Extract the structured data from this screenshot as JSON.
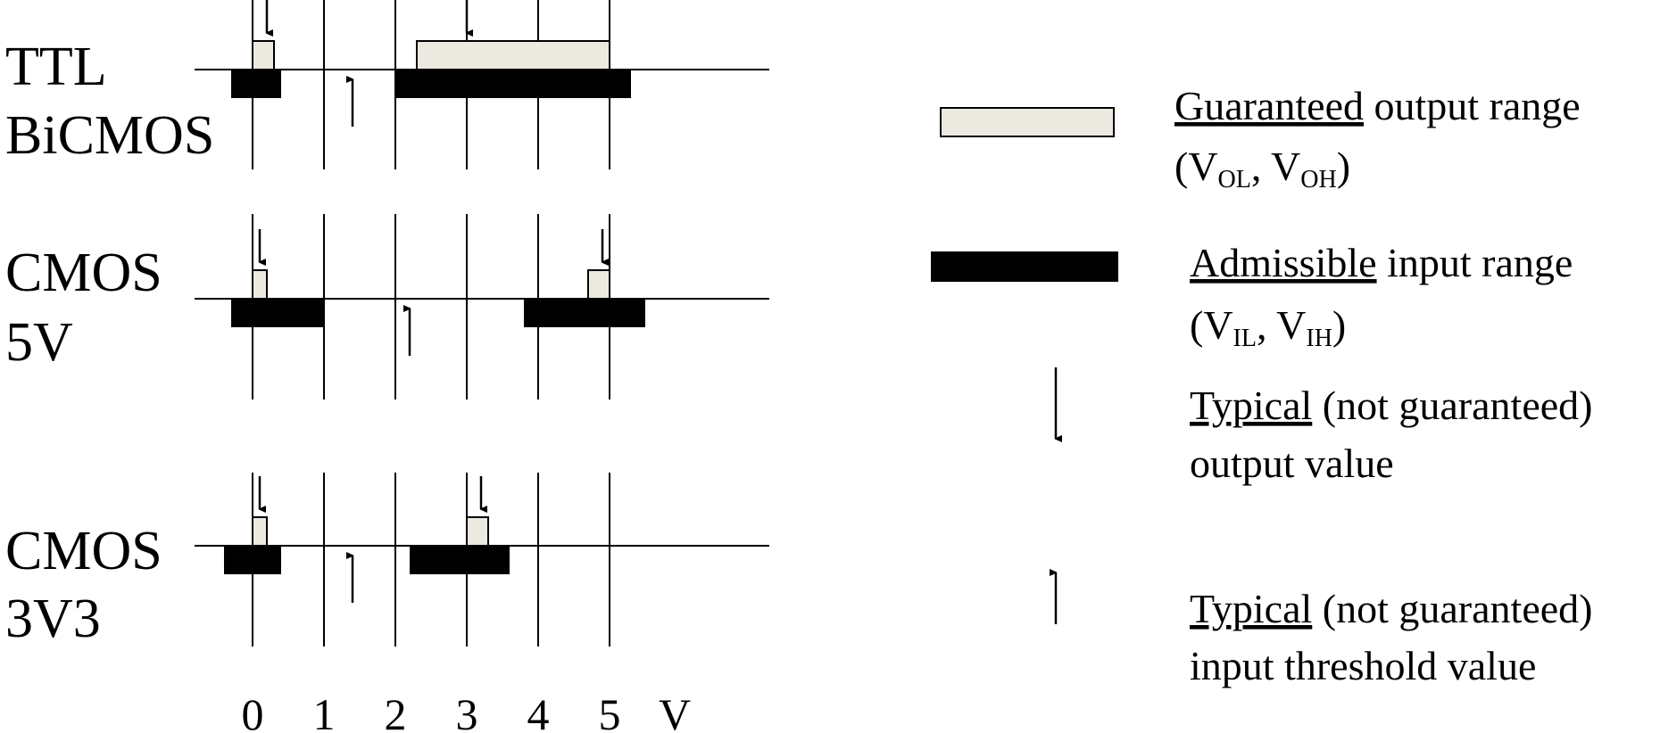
{
  "colors": {
    "output_fill": "#ECEAE0",
    "input_fill": "#000000",
    "line": "#000000",
    "background": "#FFFFFF"
  },
  "families": [
    {
      "label_lines": [
        "TTL",
        "BiCMOS"
      ],
      "output_ranges": [
        [
          0.0,
          0.3
        ],
        [
          2.3,
          5.0
        ]
      ],
      "input_ranges": [
        [
          -0.3,
          0.4
        ],
        [
          2.0,
          5.3
        ]
      ],
      "typical_outputs": [
        0.2,
        3.0
      ],
      "typical_threshold": 1.4
    },
    {
      "label_lines": [
        "CMOS",
        "5V"
      ],
      "output_ranges": [
        [
          0.0,
          0.2
        ],
        [
          4.7,
          5.0
        ]
      ],
      "input_ranges": [
        [
          -0.3,
          1.0
        ],
        [
          3.8,
          5.5
        ]
      ],
      "typical_outputs": [
        0.1,
        4.9
      ],
      "typical_threshold": 2.2
    },
    {
      "label_lines": [
        "CMOS",
        "3V3"
      ],
      "output_ranges": [
        [
          0.0,
          0.2
        ],
        [
          3.0,
          3.3
        ]
      ],
      "input_ranges": [
        [
          -0.4,
          0.4
        ],
        [
          2.2,
          3.6
        ]
      ],
      "typical_outputs": [
        0.1,
        3.2
      ],
      "typical_threshold": 1.4
    }
  ],
  "axis": {
    "ticks": [
      "0",
      "1",
      "2",
      "3",
      "4",
      "5"
    ],
    "tick_values": [
      0,
      1,
      2,
      3,
      4,
      5
    ],
    "unit": "V",
    "range": [
      -0.8,
      7.2
    ]
  },
  "legend": {
    "output_range": {
      "term": "Guaranteed",
      "rest": " output range",
      "line2_open": "(V",
      "sub1": "OL",
      "line2_mid": ", V",
      "sub2": "OH",
      "line2_close": ")"
    },
    "input_range": {
      "term": "Admissible",
      "rest": " input range",
      "line2_open": "(V",
      "sub1": "IL",
      "line2_mid": ", V",
      "sub2": "IH",
      "line2_close": ")"
    },
    "typical_output": {
      "term": "Typical",
      "rest": " (not guaranteed)",
      "line2": "output value"
    },
    "typical_threshold": {
      "term": "Typical",
      "rest": " (not guaranteed)",
      "line2": "input threshold value"
    }
  }
}
